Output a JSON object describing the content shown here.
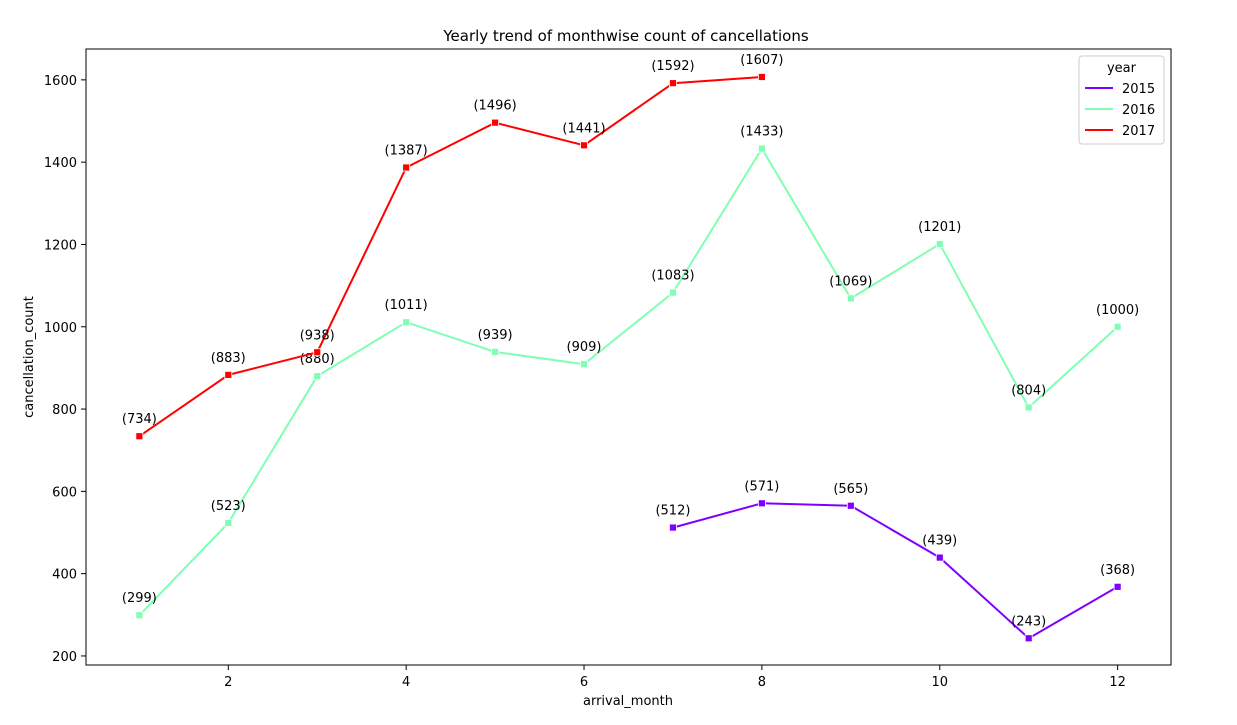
{
  "chart_data": {
    "type": "line",
    "title": "Yearly trend of monthwise count of cancellations",
    "xlabel": "arrival_month",
    "ylabel": "cancellation_count",
    "xlim": [
      0.4,
      12.6
    ],
    "ylim": [
      178,
      1675
    ],
    "xticks": [
      2,
      4,
      6,
      8,
      10,
      12
    ],
    "yticks": [
      200,
      400,
      600,
      800,
      1000,
      1200,
      1400,
      1600
    ],
    "grid": false,
    "legend": {
      "title": "year",
      "placement": "top-right"
    },
    "series": [
      {
        "name": "2015",
        "color": "#8000ff",
        "x": [
          7,
          8,
          9,
          10,
          11,
          12
        ],
        "values": [
          512,
          571,
          565,
          439,
          243,
          368
        ],
        "labels": [
          "(512)",
          "(571)",
          "(565)",
          "(439)",
          "(243)",
          "(368)"
        ]
      },
      {
        "name": "2016",
        "color": "#80ffb4",
        "x": [
          1,
          2,
          3,
          4,
          5,
          6,
          7,
          8,
          9,
          10,
          11,
          12
        ],
        "values": [
          299,
          523,
          880,
          1011,
          939,
          909,
          1083,
          1433,
          1069,
          1201,
          804,
          1000
        ],
        "labels": [
          "(299)",
          "(523)",
          "(880)",
          "(1011)",
          "(939)",
          "(909)",
          "(1083)",
          "(1433)",
          "(1069)",
          "(1201)",
          "(804)",
          "(1000)"
        ]
      },
      {
        "name": "2017",
        "color": "#ff0000",
        "x": [
          1,
          2,
          3,
          4,
          5,
          6,
          7,
          8
        ],
        "values": [
          734,
          883,
          938,
          1387,
          1496,
          1441,
          1592,
          1607
        ],
        "labels": [
          "(734)",
          "(883)",
          "(938)",
          "(1387)",
          "(1496)",
          "(1441)",
          "(1592)",
          "(1607)"
        ]
      }
    ]
  }
}
